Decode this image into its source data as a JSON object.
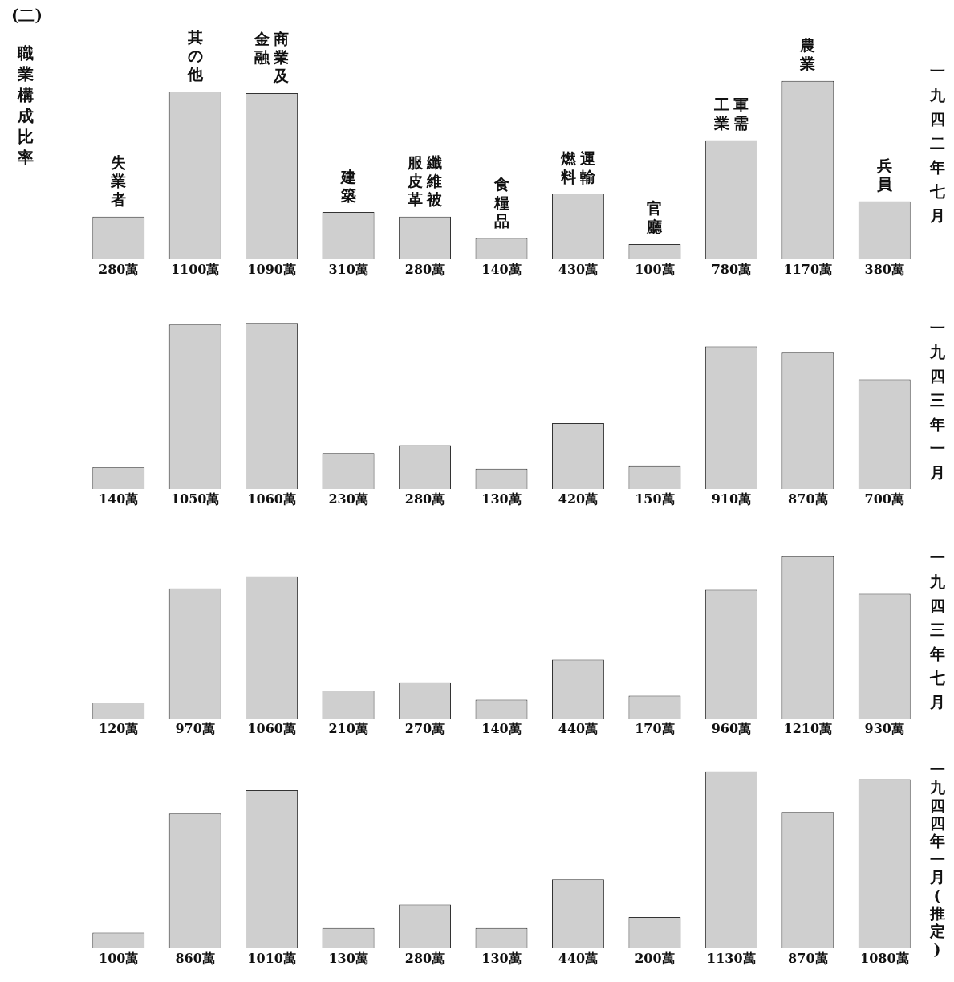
{
  "chart_data": [
    {
      "type": "bar",
      "title": "一九四二年七月",
      "subtitle": "職業構成比率",
      "annotations": [
        "(二)"
      ],
      "categories": [
        "失業者",
        "其の他",
        "商業及金融",
        "建築",
        "纖維被服皮革",
        "食糧品",
        "運輸燃料",
        "官廳",
        "軍需工業",
        "農業",
        "兵員"
      ],
      "values": [
        280,
        1100,
        1090,
        310,
        280,
        140,
        430,
        100,
        780,
        1170,
        380
      ],
      "value_labels": [
        "280萬",
        "1100萬",
        "1090萬",
        "310萬",
        "280萬",
        "140萬",
        "430萬",
        "100萬",
        "780萬",
        "1170萬",
        "380萬"
      ],
      "color": "#cfcfcf"
    },
    {
      "type": "bar",
      "title": "一九四三年一月",
      "categories": [
        "失業者",
        "其の他",
        "商業及金融",
        "建築",
        "纖維被服皮革",
        "食糧品",
        "運輸燃料",
        "官廳",
        "軍需工業",
        "農業",
        "兵員"
      ],
      "values": [
        140,
        1050,
        1060,
        230,
        280,
        130,
        420,
        150,
        910,
        870,
        700
      ],
      "value_labels": [
        "140萬",
        "1050萬",
        "1060萬",
        "230萬",
        "280萬",
        "130萬",
        "420萬",
        "150萬",
        "910萬",
        "870萬",
        "700萬"
      ],
      "color": "#cfcfcf",
      "tick_labels": false
    },
    {
      "type": "bar",
      "title": "一九四三年七月",
      "categories": [
        "失業者",
        "其の他",
        "商業及金融",
        "建築",
        "纖維被服皮革",
        "食糧品",
        "運輸燃料",
        "官廳",
        "軍需工業",
        "農業",
        "兵員"
      ],
      "values": [
        120,
        970,
        1060,
        210,
        270,
        140,
        440,
        170,
        960,
        1210,
        930
      ],
      "value_labels": [
        "120萬",
        "970萬",
        "1060萬",
        "210萬",
        "270萬",
        "140萬",
        "440萬",
        "170萬",
        "960萬",
        "1210萬",
        "930萬"
      ],
      "color": "#cfcfcf",
      "tick_labels": false
    },
    {
      "type": "bar",
      "title": "一九四四年一月(推定)",
      "categories": [
        "失業者",
        "其の他",
        "商業及金融",
        "建築",
        "纖維被服皮革",
        "食糧品",
        "運輸燃料",
        "官廳",
        "軍需工業",
        "農業",
        "兵員"
      ],
      "values": [
        100,
        860,
        1010,
        130,
        280,
        130,
        440,
        200,
        1130,
        870,
        1080
      ],
      "value_labels": [
        "100萬",
        "860萬",
        "1010萬",
        "130萬",
        "280萬",
        "130萬",
        "440萬",
        "200萬",
        "1130萬",
        "870萬",
        "1080萬"
      ],
      "color": "#cfcfcf",
      "tick_labels": false
    }
  ]
}
